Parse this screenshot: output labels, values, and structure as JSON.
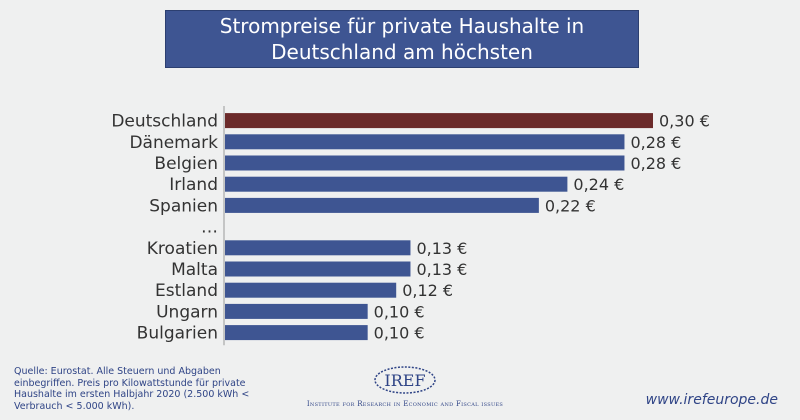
{
  "header": {
    "title": "Strompreise für private Haushalte in Deutschland am höchsten"
  },
  "chart_data": {
    "type": "bar",
    "orientation": "horizontal",
    "categories": [
      "Deutschland",
      "Dänemark",
      "Belgien",
      "Irland",
      "Spanien",
      "…",
      "Kroatien",
      "Malta",
      "Estland",
      "Ungarn",
      "Bulgarien"
    ],
    "values": [
      0.3,
      0.28,
      0.28,
      0.24,
      0.22,
      null,
      0.13,
      0.13,
      0.12,
      0.1,
      0.1
    ],
    "value_labels": [
      "0,30 €",
      "0,28 €",
      "0,28 €",
      "0,24 €",
      "0,22 €",
      "",
      "0,13 €",
      "0,13 €",
      "0,12 €",
      "0,10 €",
      "0,10 €"
    ],
    "highlight_category": "Deutschland",
    "colors": {
      "bar": "#3e5592",
      "highlight": "#6b2a2a",
      "axis": "#9a9a9a",
      "label": "#333333"
    },
    "xlim": [
      0,
      0.3
    ],
    "grid": false,
    "legend": "none"
  },
  "footer": {
    "source": "Quelle: Eurostat. Alle Steuern und Abgaben einbegriffen. Preis pro Kilowattstunde für private Haushalte im ersten Halbjahr 2020 (2.500 kWh < Verbrauch < 5.000 kWh).",
    "logo_text": "IREF",
    "logo_tagline": "Institute for Research in Economic and Fiscal issues",
    "website": "www.irefeurope.de"
  }
}
